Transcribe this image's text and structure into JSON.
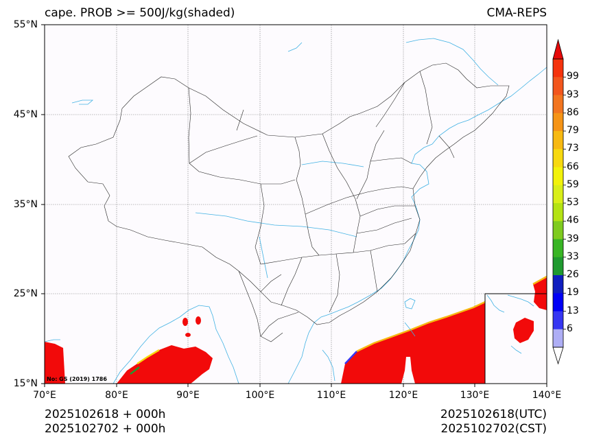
{
  "title_left": "cape. PROB >= 500J/kg(shaded)",
  "title_right": "CMA-REPS",
  "lat_labels": [
    "55°N",
    "45°N",
    "35°N",
    "25°N",
    "15°N"
  ],
  "lon_labels": [
    "70°E",
    "80°E",
    "90°E",
    "100°E",
    "110°E",
    "120°E",
    "130°E",
    "140°E"
  ],
  "footer_left": [
    "2025102618  +  000h",
    "2025102702  +  000h"
  ],
  "footer_right": [
    "2025102618(UTC)",
    "2025102702(CST)"
  ],
  "map_note": "No: GS (2019) 1786",
  "colorbar": {
    "labels": [
      "99",
      "93",
      "86",
      "79",
      "73",
      "66",
      "59",
      "53",
      "46",
      "39",
      "33",
      "26",
      "19",
      "13",
      "6"
    ],
    "colors": [
      "#f5330d",
      "#f2561d",
      "#f2751f",
      "#f59416",
      "#f7b911",
      "#f7d90f",
      "#f2f20a",
      "#d9ee19",
      "#b4e314",
      "#7fcb1f",
      "#38b524",
      "#1f9a2f",
      "#0f1ebf",
      "#0000f5",
      "#3636f2",
      "#aeaef5"
    ],
    "max_color": "#e60a0a",
    "min_color": "#ffffff"
  },
  "colors": {
    "shade_red": "#f20a0a",
    "coast": "#3fb1e3",
    "border": "#000000",
    "map_bg": "#fdfbfe"
  }
}
